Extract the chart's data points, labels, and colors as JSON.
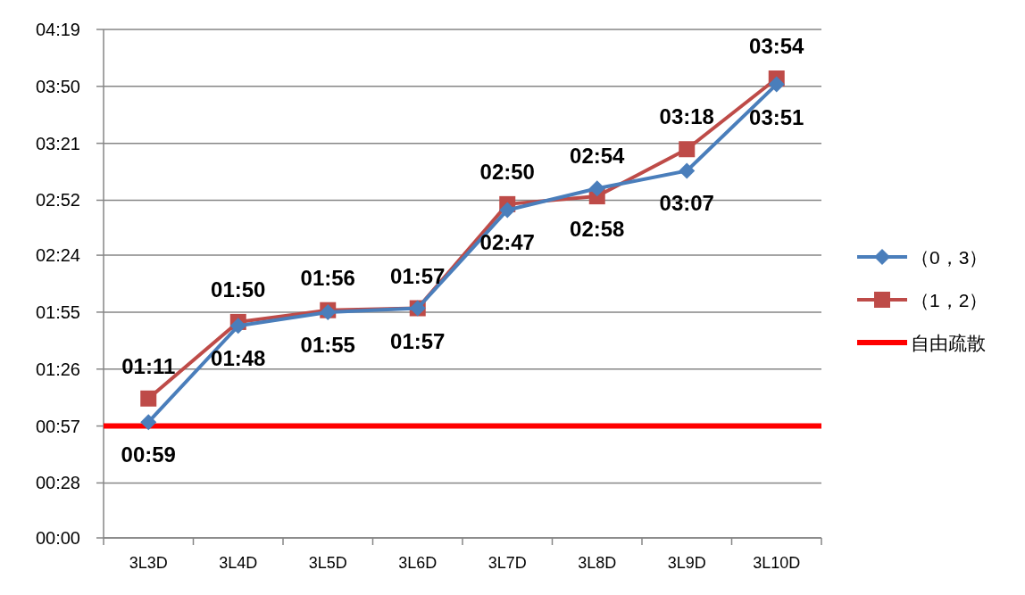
{
  "chart_data": {
    "type": "line",
    "categories": [
      "3L3D",
      "3L4D",
      "3L5D",
      "3L6D",
      "3L7D",
      "3L8D",
      "3L9D",
      "3L10D"
    ],
    "series": [
      {
        "name": "（0，3）",
        "color": "#4a7ebb",
        "marker": "diamond",
        "values": [
          59,
          108,
          115,
          117,
          167,
          178,
          187,
          231
        ],
        "value_labels": [
          "00:59",
          "01:48",
          "01:55",
          "01:57",
          "02:47",
          "02:58",
          "03:07",
          "03:51"
        ]
      },
      {
        "name": "（1，2）",
        "color": "#be4b48",
        "marker": "square",
        "values": [
          71,
          110,
          116,
          117,
          170,
          174,
          198,
          234
        ],
        "value_labels": [
          "01:11",
          "01:50",
          "01:56",
          "01:57",
          "02:50",
          "02:54",
          "03:18",
          "03:54"
        ]
      }
    ],
    "ylim": [
      0,
      259
    ],
    "yticks": [
      {
        "value": 0,
        "label": "00:00"
      },
      {
        "value": 28,
        "label": "00:28"
      },
      {
        "value": 57,
        "label": "00:57"
      },
      {
        "value": 86,
        "label": "01:26"
      },
      {
        "value": 115,
        "label": "01:55"
      },
      {
        "value": 144,
        "label": "02:24"
      },
      {
        "value": 172,
        "label": "02:52"
      },
      {
        "value": 201,
        "label": "03:21"
      },
      {
        "value": 230,
        "label": "03:50"
      },
      {
        "value": 259,
        "label": "04:19"
      }
    ],
    "ref_lines": [
      {
        "axis": "y",
        "value": 57,
        "label": "自由疏散",
        "color": "#ff0000"
      }
    ],
    "grid": "y",
    "legend": "right"
  }
}
